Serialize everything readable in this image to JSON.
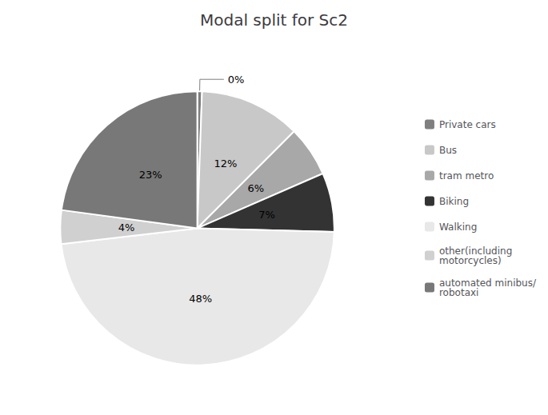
{
  "chart_data": {
    "type": "pie",
    "title": "Modal split for Sc2",
    "categories": [
      "Private cars",
      "Bus",
      "tram metro",
      "Biking",
      "Walking",
      "other(including\nmotorcycles)",
      "automated minibus/\nrobotaxi"
    ],
    "values": [
      0,
      12,
      6,
      7,
      48,
      4,
      23
    ],
    "value_labels": [
      "0%",
      "12%",
      "6%",
      "7%",
      "48%",
      "4%",
      "23%"
    ],
    "colors": [
      "#7f7f7f",
      "#c8c8c8",
      "#a8a8a8",
      "#333333",
      "#e8e8e8",
      "#d0d0d0",
      "#787878"
    ],
    "data_labels": true,
    "legend": "right"
  }
}
